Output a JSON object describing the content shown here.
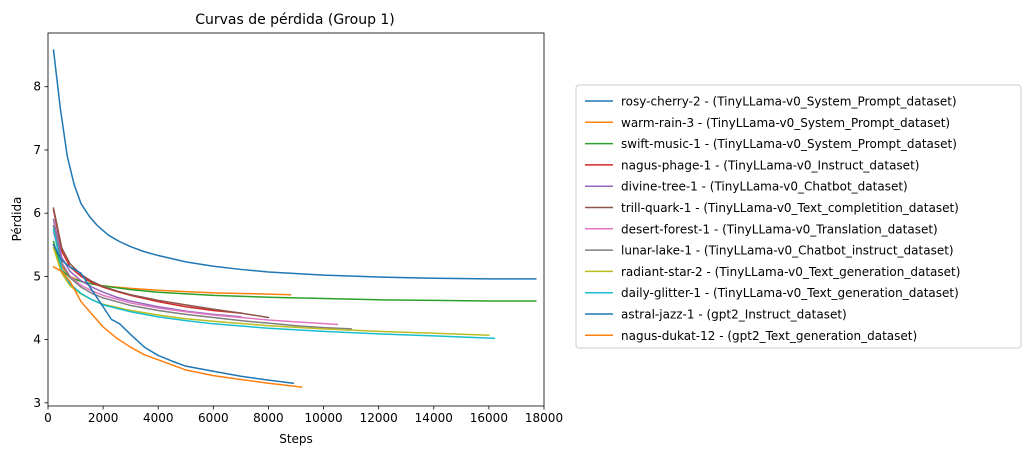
{
  "chart_data": {
    "type": "line",
    "title": "Curvas de pérdida (Group 1)",
    "xlabel": "Steps",
    "ylabel": "Pérdida",
    "xlim": [
      0,
      18000
    ],
    "ylim": [
      2.95,
      8.85
    ],
    "xticks": [
      0,
      2000,
      4000,
      6000,
      8000,
      10000,
      12000,
      14000,
      16000,
      18000
    ],
    "yticks": [
      3,
      4,
      5,
      6,
      7,
      8
    ],
    "grid": false,
    "legend_position": "outside-right",
    "series": [
      {
        "name": "rosy-cherry-2 - (TinyLLama-v0_System_Prompt_dataset)",
        "color": "#1f77b4",
        "x": [
          200,
          450,
          700,
          950,
          1200,
          1500,
          1800,
          2200,
          2600,
          3000,
          3500,
          4000,
          5000,
          6000,
          7000,
          8000,
          10000,
          12000,
          14000,
          16000,
          17700
        ],
        "y": [
          8.58,
          7.65,
          6.9,
          6.45,
          6.15,
          5.95,
          5.8,
          5.65,
          5.55,
          5.47,
          5.39,
          5.33,
          5.23,
          5.16,
          5.11,
          5.07,
          5.02,
          4.99,
          4.97,
          4.96,
          4.96
        ]
      },
      {
        "name": "warm-rain-3 - (TinyLLama-v0_System_Prompt_dataset)",
        "color": "#ff7f0e",
        "x": [
          200,
          500,
          800,
          1200,
          1600,
          2000,
          2500,
          3000,
          4000,
          5000,
          6000,
          7000,
          8000,
          8800
        ],
        "y": [
          5.5,
          5.15,
          5.0,
          4.92,
          4.88,
          4.85,
          4.83,
          4.81,
          4.78,
          4.76,
          4.74,
          4.73,
          4.72,
          4.71
        ]
      },
      {
        "name": "swift-music-1 - (TinyLLama-v0_System_Prompt_dataset)",
        "color": "#2ca02c",
        "x": [
          200,
          500,
          800,
          1200,
          1600,
          2000,
          3000,
          4000,
          6000,
          8000,
          10000,
          12000,
          14000,
          16000,
          17700
        ],
        "y": [
          5.55,
          5.1,
          4.98,
          4.92,
          4.88,
          4.85,
          4.79,
          4.75,
          4.7,
          4.67,
          4.65,
          4.63,
          4.62,
          4.61,
          4.61
        ]
      },
      {
        "name": "nagus-phage-1 - (TinyLLama-v0_Instruct_dataset)",
        "color": "#d62728",
        "x": [
          200,
          500,
          800,
          1200,
          1600,
          2000,
          2500,
          3000,
          4000,
          5000,
          6000,
          7000
        ],
        "y": [
          6.05,
          5.4,
          5.15,
          5.0,
          4.9,
          4.83,
          4.76,
          4.7,
          4.6,
          4.52,
          4.46,
          4.42
        ]
      },
      {
        "name": "divine-tree-1 - (TinyLLama-v0_Chatbot_dataset)",
        "color": "#9467bd",
        "x": [
          200,
          500,
          800,
          1200,
          1600,
          2000,
          2500,
          3000,
          4000,
          5000,
          6000,
          7000
        ],
        "y": [
          5.9,
          5.3,
          5.08,
          4.93,
          4.83,
          4.75,
          4.67,
          4.61,
          4.52,
          4.45,
          4.4,
          4.36
        ]
      },
      {
        "name": "trill-quark-1 - (TinyLLama-v0_Text_completition_dataset)",
        "color": "#8c564b",
        "x": [
          200,
          500,
          800,
          1200,
          1600,
          2000,
          2500,
          3000,
          4000,
          5000,
          6000,
          7000,
          8000
        ],
        "y": [
          6.08,
          5.45,
          5.2,
          5.03,
          4.92,
          4.84,
          4.77,
          4.71,
          4.62,
          4.55,
          4.48,
          4.42,
          4.35
        ]
      },
      {
        "name": "desert-forest-1 - (TinyLLama-v0_Translation_dataset)",
        "color": "#e377c2",
        "x": [
          200,
          500,
          800,
          1200,
          1600,
          2000,
          3000,
          4000,
          5000,
          6000,
          7000,
          8000,
          9000,
          10500
        ],
        "y": [
          5.7,
          5.22,
          5.0,
          4.86,
          4.77,
          4.7,
          4.58,
          4.5,
          4.44,
          4.39,
          4.35,
          4.31,
          4.28,
          4.24
        ]
      },
      {
        "name": "lunar-lake-1 - (TinyLLama-v0_Chatbot_instruct_dataset)",
        "color": "#7f7f7f",
        "x": [
          200,
          500,
          800,
          1200,
          1600,
          2000,
          3000,
          4000,
          5000,
          6000,
          7000,
          8000,
          9000,
          10000,
          11000
        ],
        "y": [
          5.8,
          5.2,
          4.98,
          4.83,
          4.73,
          4.66,
          4.54,
          4.46,
          4.4,
          4.35,
          4.3,
          4.26,
          4.22,
          4.19,
          4.17
        ]
      },
      {
        "name": "radiant-star-2 - (TinyLLama-v0_Text_generation_dataset)",
        "color": "#bcbd22",
        "x": [
          200,
          500,
          800,
          1200,
          1600,
          2000,
          3000,
          4000,
          5000,
          6000,
          8000,
          10000,
          12000,
          14000,
          16000
        ],
        "y": [
          5.45,
          5.05,
          4.85,
          4.72,
          4.63,
          4.56,
          4.46,
          4.39,
          4.33,
          4.29,
          4.22,
          4.17,
          4.13,
          4.1,
          4.07
        ]
      },
      {
        "name": "daily-glitter-1 - (TinyLLama-v0_Text_generation_dataset)",
        "color": "#17becf",
        "x": [
          200,
          500,
          800,
          1200,
          1600,
          2000,
          3000,
          4000,
          5000,
          6000,
          8000,
          10000,
          12000,
          14000,
          16200
        ],
        "y": [
          5.75,
          5.1,
          4.88,
          4.73,
          4.63,
          4.55,
          4.44,
          4.36,
          4.3,
          4.25,
          4.18,
          4.13,
          4.09,
          4.06,
          4.02
        ]
      },
      {
        "name": "astral-jazz-1 - (gpt2_Instruct_dataset)",
        "color": "#1f77b4",
        "x": [
          200,
          500,
          800,
          1200,
          1600,
          2000,
          2300,
          2600,
          3000,
          3500,
          4000,
          4500,
          5000,
          6000,
          7000,
          8000,
          8900
        ],
        "y": [
          5.5,
          5.25,
          5.15,
          5.05,
          4.78,
          4.52,
          4.32,
          4.25,
          4.08,
          3.88,
          3.75,
          3.66,
          3.58,
          3.5,
          3.42,
          3.36,
          3.31
        ]
      },
      {
        "name": "nagus-dukat-12 - (gpt2_Text_generation_dataset)",
        "color": "#ff7f0e",
        "x": [
          200,
          500,
          800,
          1200,
          1600,
          2000,
          2500,
          3000,
          3500,
          4000,
          5000,
          6000,
          7000,
          8000,
          9200
        ],
        "y": [
          5.15,
          5.08,
          4.92,
          4.6,
          4.4,
          4.2,
          4.02,
          3.88,
          3.76,
          3.68,
          3.52,
          3.43,
          3.37,
          3.31,
          3.25
        ]
      }
    ]
  }
}
